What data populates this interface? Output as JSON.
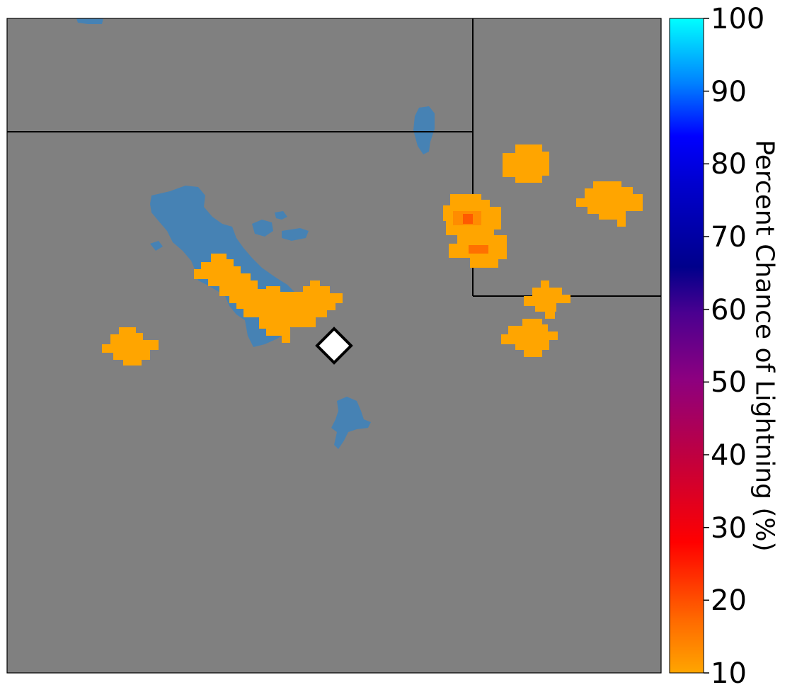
{
  "colorbar": {
    "label": "Percent Chance of Lightning (%)",
    "ticks": [
      "100",
      "90",
      "80",
      "70",
      "60",
      "50",
      "40",
      "30",
      "20",
      "10"
    ],
    "range": [
      10,
      100
    ],
    "colors": [
      "#ffa500",
      "#ff3300",
      "#ff0000",
      "#c8003c",
      "#8b0080",
      "#55008c",
      "#00008b",
      "#0000cc",
      "#0000ff",
      "#0080ff",
      "#00ffff"
    ]
  },
  "map": {
    "background_color": "#808080",
    "water_color": "#4682b4",
    "lightning_10pct_color": "#ffa500",
    "lightning_15pct_color": "#ff7f00",
    "lightning_20pct_color": "#ff5500",
    "marker": "diamond-icon"
  }
}
